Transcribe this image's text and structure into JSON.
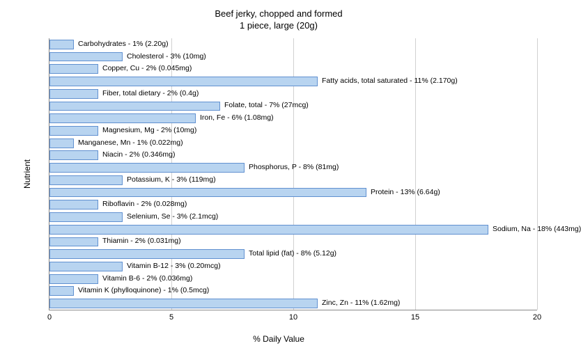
{
  "title_line1": "Beef jerky, chopped and formed",
  "title_line2": "1 piece, large (20g)",
  "y_axis_label": "Nutrient",
  "x_axis_label": "% Daily Value",
  "x_ticks": [
    0,
    5,
    10,
    15,
    20
  ],
  "x_max": 20,
  "bar_color": "#b8d4f0",
  "bar_border_color": "#6090d0",
  "grid_color": "#d0d0d0",
  "label_fontsize": 10.5,
  "title_fontsize": 13,
  "axis_fontsize": 12,
  "tick_fontsize": 11,
  "background_color": "#ffffff",
  "nutrients": [
    {
      "label": "Carbohydrates - 1% (2.20g)",
      "value": 1
    },
    {
      "label": "Cholesterol - 3% (10mg)",
      "value": 3
    },
    {
      "label": "Copper, Cu - 2% (0.045mg)",
      "value": 2
    },
    {
      "label": "Fatty acids, total saturated - 11% (2.170g)",
      "value": 11
    },
    {
      "label": "Fiber, total dietary - 2% (0.4g)",
      "value": 2
    },
    {
      "label": "Folate, total - 7% (27mcg)",
      "value": 7
    },
    {
      "label": "Iron, Fe - 6% (1.08mg)",
      "value": 6
    },
    {
      "label": "Magnesium, Mg - 2% (10mg)",
      "value": 2
    },
    {
      "label": "Manganese, Mn - 1% (0.022mg)",
      "value": 1
    },
    {
      "label": "Niacin - 2% (0.346mg)",
      "value": 2
    },
    {
      "label": "Phosphorus, P - 8% (81mg)",
      "value": 8
    },
    {
      "label": "Potassium, K - 3% (119mg)",
      "value": 3
    },
    {
      "label": "Protein - 13% (6.64g)",
      "value": 13
    },
    {
      "label": "Riboflavin - 2% (0.028mg)",
      "value": 2
    },
    {
      "label": "Selenium, Se - 3% (2.1mcg)",
      "value": 3
    },
    {
      "label": "Sodium, Na - 18% (443mg)",
      "value": 18
    },
    {
      "label": "Thiamin - 2% (0.031mg)",
      "value": 2
    },
    {
      "label": "Total lipid (fat) - 8% (5.12g)",
      "value": 8
    },
    {
      "label": "Vitamin B-12 - 3% (0.20mcg)",
      "value": 3
    },
    {
      "label": "Vitamin B-6 - 2% (0.036mg)",
      "value": 2
    },
    {
      "label": "Vitamin K (phylloquinone) - 1% (0.5mcg)",
      "value": 1
    },
    {
      "label": "Zinc, Zn - 11% (1.62mg)",
      "value": 11
    }
  ]
}
